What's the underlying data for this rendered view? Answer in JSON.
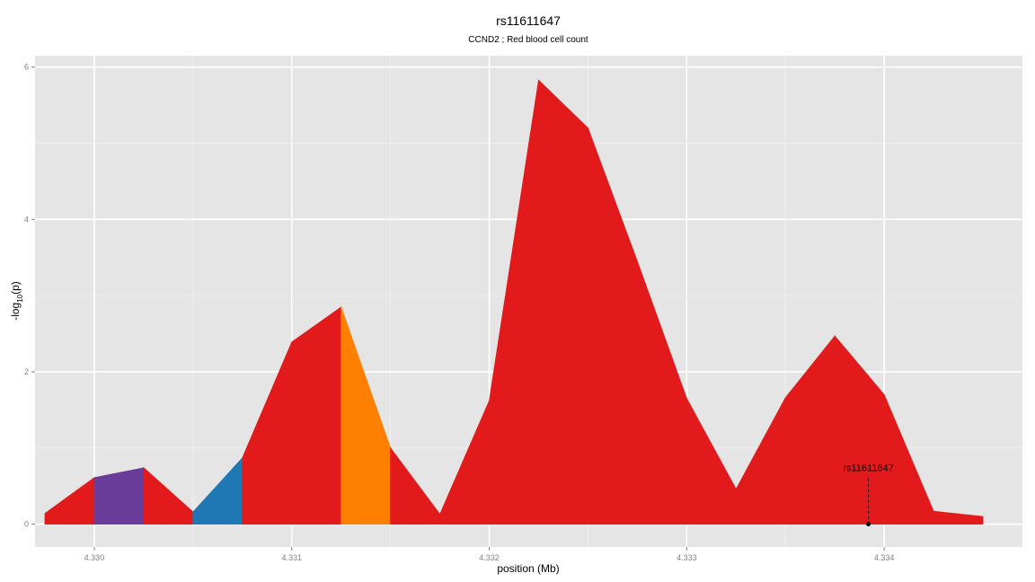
{
  "chart_data": {
    "type": "area",
    "title": "rs11611647",
    "subtitle": "CCND2 ; Red blood cell count",
    "xlabel": "position (Mb)",
    "ylabel_main": "-log",
    "ylabel_sub": "10",
    "ylabel_tail": "(p)",
    "xlim": [
      4.3297,
      4.3347
    ],
    "ylim": [
      -0.3,
      6.15
    ],
    "x_ticks": [
      4.33,
      4.331,
      4.332,
      4.333,
      4.334
    ],
    "x_tick_labels": [
      "4.330",
      "4.331",
      "4.332",
      "4.333",
      "4.334"
    ],
    "y_ticks": [
      0,
      2,
      4,
      6
    ],
    "y_tick_labels": [
      "0",
      "2",
      "4",
      "6"
    ],
    "grid": true,
    "background": "#e5e5e5",
    "x": [
      4.32975,
      4.33,
      4.33025,
      4.3305,
      4.33075,
      4.331,
      4.33125,
      4.3315,
      4.33175,
      4.332,
      4.33225,
      4.3325,
      4.33275,
      4.333,
      4.33325,
      4.3335,
      4.33375,
      4.334,
      4.33425,
      4.3345
    ],
    "y": [
      0.14,
      0.61,
      0.74,
      0.16,
      0.87,
      2.39,
      2.85,
      1.0,
      0.13,
      1.62,
      5.83,
      5.2,
      3.45,
      1.65,
      0.46,
      1.66,
      2.47,
      1.7,
      0.17,
      0.1
    ],
    "segment_colors": [
      "#e31a1c",
      "#6a3d9a",
      "#e31a1c",
      "#1f78b4",
      "#e31a1c",
      "#e31a1c",
      "#ff7f00",
      "#e31a1c",
      "#e31a1c",
      "#e31a1c",
      "#e31a1c",
      "#e31a1c",
      "#e31a1c",
      "#e31a1c",
      "#e31a1c",
      "#e31a1c",
      "#e31a1c",
      "#e31a1c",
      "#e31a1c"
    ],
    "annotation": {
      "label": "rs11611647",
      "x": 4.33392,
      "y": 0,
      "line_top": 0.6
    }
  }
}
